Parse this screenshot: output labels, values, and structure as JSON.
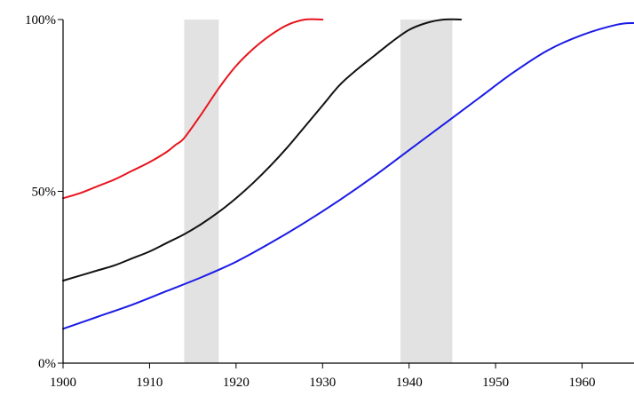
{
  "chart_data": {
    "type": "line",
    "title": "",
    "xlabel": "",
    "ylabel": "",
    "xlim": [
      1900,
      1966
    ],
    "ylim": [
      0,
      100
    ],
    "x_ticks": [
      1900,
      1910,
      1920,
      1930,
      1940,
      1950,
      1960
    ],
    "x_tick_labels": [
      "1900",
      "1910",
      "1920",
      "1930",
      "1940",
      "1950",
      "1960"
    ],
    "y_ticks": [
      0,
      50,
      100
    ],
    "y_tick_labels": [
      "0%",
      "50%",
      "100%"
    ],
    "grid": false,
    "legend": "none",
    "shaded_periods": [
      {
        "start": 1914,
        "end": 1918,
        "color": "#e2e2e2"
      },
      {
        "start": 1939,
        "end": 1945,
        "color": "#e2e2e2"
      }
    ],
    "series": [
      {
        "color": "#e8141e",
        "x": [
          1900,
          1902,
          1904,
          1906,
          1908,
          1910,
          1912,
          1913,
          1914,
          1916,
          1918,
          1920,
          1922,
          1924,
          1926,
          1928,
          1930
        ],
        "values": [
          48,
          49.5,
          51.5,
          53.5,
          56,
          58.5,
          61.5,
          63.5,
          65.5,
          72.5,
          80,
          86.5,
          91.5,
          95.5,
          98.5,
          100,
          100
        ]
      },
      {
        "color": "#111111",
        "x": [
          1900,
          1902,
          1904,
          1906,
          1908,
          1910,
          1912,
          1914,
          1916,
          1918,
          1920,
          1922,
          1924,
          1926,
          1928,
          1930,
          1932,
          1934,
          1936,
          1938,
          1940,
          1942,
          1944,
          1946
        ],
        "values": [
          24,
          25.5,
          27,
          28.5,
          30.5,
          32.5,
          35,
          37.5,
          40.5,
          44,
          48,
          52.5,
          57.5,
          63,
          69,
          75,
          81,
          85.5,
          89.5,
          93.5,
          97,
          99,
          100,
          100
        ]
      },
      {
        "color": "#1a1ae6",
        "x": [
          1900,
          1904,
          1908,
          1912,
          1916,
          1920,
          1924,
          1928,
          1932,
          1936,
          1940,
          1944,
          1948,
          1952,
          1956,
          1960,
          1964,
          1966
        ],
        "values": [
          10,
          13.5,
          17,
          21,
          25,
          29.5,
          35,
          41,
          47.5,
          54.5,
          62,
          69.5,
          77,
          84.5,
          91,
          95.5,
          98.5,
          99
        ]
      }
    ]
  }
}
